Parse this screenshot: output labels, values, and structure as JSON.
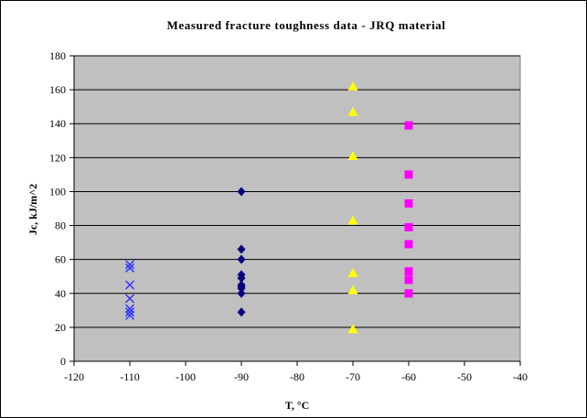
{
  "chart_data": {
    "type": "scatter",
    "title": "Measured fracture toughness data - JRQ material",
    "xlabel": "T, °C",
    "ylabel": "Jc, kJ/m^2",
    "xlim": [
      -120,
      -40
    ],
    "ylim": [
      0,
      180
    ],
    "xticks": [
      -120,
      -110,
      -100,
      -90,
      -80,
      -70,
      -60,
      -50,
      -40
    ],
    "yticks": [
      0,
      20,
      40,
      60,
      80,
      100,
      120,
      140,
      160,
      180
    ],
    "grid": "horizontal",
    "legend": "none",
    "plot_background": "#c0c0c0",
    "series": [
      {
        "marker": "x",
        "color": "#3333ff",
        "x": [
          -110,
          -110,
          -110,
          -110,
          -110,
          -110,
          -110
        ],
        "y": [
          57,
          55,
          45,
          37,
          31,
          29,
          27
        ]
      },
      {
        "marker": "diamond",
        "color": "#000080",
        "x": [
          -90,
          -90,
          -90,
          -90,
          -90,
          -90,
          -90,
          -90,
          -90,
          -90
        ],
        "y": [
          100,
          66,
          60,
          51,
          49,
          45,
          43,
          40,
          29,
          44
        ]
      },
      {
        "marker": "triangle",
        "color": "#ffff00",
        "x": [
          -70,
          -70,
          -70,
          -70,
          -70,
          -70,
          -70
        ],
        "y": [
          162,
          147,
          121,
          83,
          52,
          42,
          19
        ]
      },
      {
        "marker": "square",
        "color": "#ff00ff",
        "x": [
          -60,
          -60,
          -60,
          -60,
          -60,
          -60,
          -60,
          -60
        ],
        "y": [
          139,
          110,
          93,
          79,
          69,
          53,
          48,
          40
        ]
      }
    ]
  }
}
